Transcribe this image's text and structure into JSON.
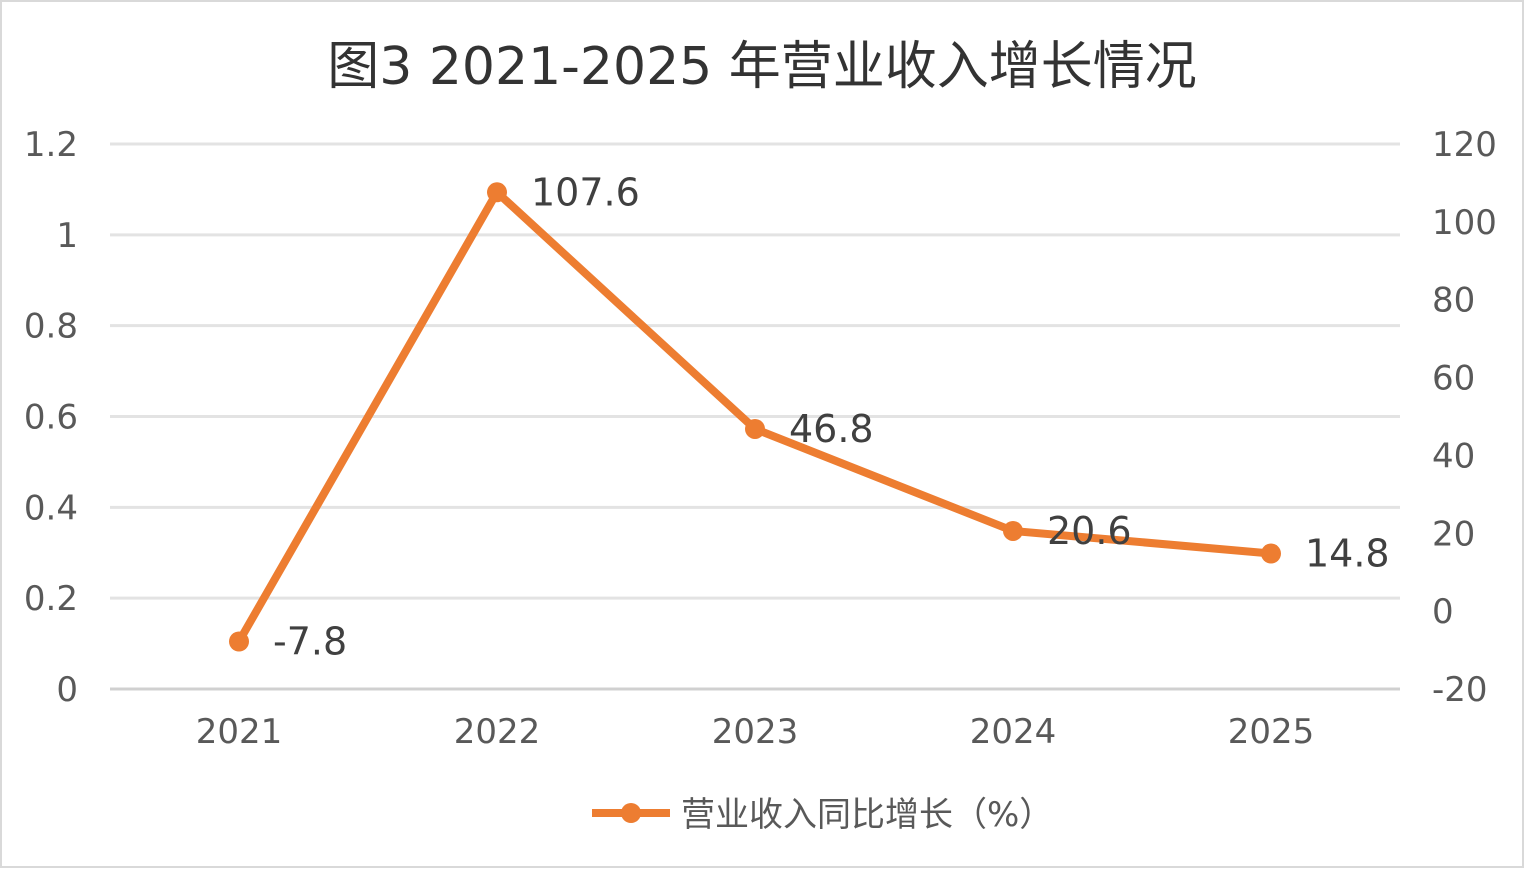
{
  "chart_data": {
    "type": "line",
    "title": "图3   2021-2025 年营业收入增长情况",
    "categories": [
      "2021",
      "2022",
      "2023",
      "2024",
      "2025"
    ],
    "series": [
      {
        "name": "营业收入同比增长（%）",
        "values": [
          -7.8,
          107.6,
          46.8,
          20.6,
          14.8
        ],
        "data_labels": [
          "-7.8",
          "107.6",
          "46.8",
          "20.6",
          "14.8"
        ],
        "color": "#ED7D31",
        "axis": "right"
      }
    ],
    "left_axis": {
      "ylim": [
        0,
        1.2
      ],
      "ticks": [
        "0",
        "0.2",
        "0.4",
        "0.6",
        "0.8",
        "1",
        "1.2"
      ]
    },
    "right_axis": {
      "ylim": [
        -20,
        120
      ],
      "ticks": [
        "-20",
        "0",
        "20",
        "40",
        "60",
        "80",
        "100",
        "120"
      ]
    },
    "grid": true,
    "legend": "bottom"
  }
}
